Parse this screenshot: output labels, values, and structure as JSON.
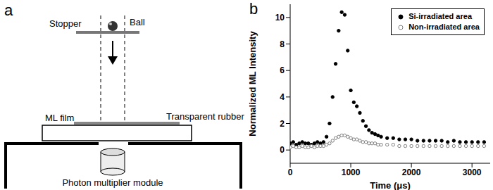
{
  "diagram": {
    "panel_label": "a",
    "labels": {
      "ball": "Ball",
      "stopper": "Stopper",
      "film": "ML film",
      "rubber": "Transparent rubber",
      "detector": "Photon multiplier module"
    }
  },
  "chart_panel_label": "b",
  "chart_data": {
    "type": "scatter",
    "x_label": "Time (μs)",
    "y_label": "Normalized ML Intensity",
    "xlim": [
      0,
      3300
    ],
    "xticks": [
      0,
      1000,
      2000,
      3000
    ],
    "ylim": [
      -1,
      11
    ],
    "yticks": [
      0,
      2,
      4,
      6,
      8,
      10
    ],
    "grid": false,
    "legend": "upper right",
    "x": [
      0,
      50,
      100,
      150,
      200,
      250,
      300,
      350,
      400,
      450,
      500,
      550,
      600,
      650,
      700,
      750,
      800,
      850,
      900,
      950,
      1000,
      1050,
      1100,
      1150,
      1200,
      1250,
      1300,
      1350,
      1400,
      1450,
      1500,
      1600,
      1700,
      1800,
      1900,
      2000,
      2100,
      2200,
      2300,
      2400,
      2500,
      2600,
      2700,
      2800,
      2900,
      3000,
      3100,
      3200
    ],
    "series": [
      {
        "name": "Si-irradiated area",
        "color": "#000000",
        "marker": "circle",
        "values": [
          0.5,
          0.6,
          0.4,
          0.5,
          0.6,
          0.5,
          0.5,
          0.4,
          0.5,
          0.6,
          0.5,
          0.6,
          1.0,
          2.0,
          4.0,
          6.5,
          9.0,
          10.4,
          10.2,
          7.5,
          4.5,
          3.6,
          3.3,
          2.8,
          2.2,
          1.8,
          1.5,
          1.3,
          1.2,
          1.1,
          1.0,
          0.9,
          0.9,
          0.8,
          0.8,
          0.8,
          0.7,
          0.7,
          0.7,
          0.7,
          0.7,
          0.6,
          0.7,
          0.6,
          0.6,
          0.6,
          0.6,
          0.6
        ]
      },
      {
        "name": "Non-irradiated area",
        "color": "#808080",
        "marker": "open_circle",
        "values": [
          0.2,
          0.3,
          0.2,
          0.2,
          0.3,
          0.2,
          0.2,
          0.3,
          0.2,
          0.3,
          0.3,
          0.3,
          0.4,
          0.5,
          0.7,
          0.9,
          1.0,
          1.1,
          1.1,
          1.0,
          0.9,
          0.8,
          0.8,
          0.7,
          0.6,
          0.6,
          0.5,
          0.5,
          0.5,
          0.4,
          0.4,
          0.4,
          0.4,
          0.3,
          0.3,
          0.3,
          0.3,
          0.3,
          0.3,
          0.3,
          0.3,
          0.3,
          0.3,
          0.3,
          0.3,
          0.3,
          0.3,
          0.3
        ]
      }
    ]
  }
}
